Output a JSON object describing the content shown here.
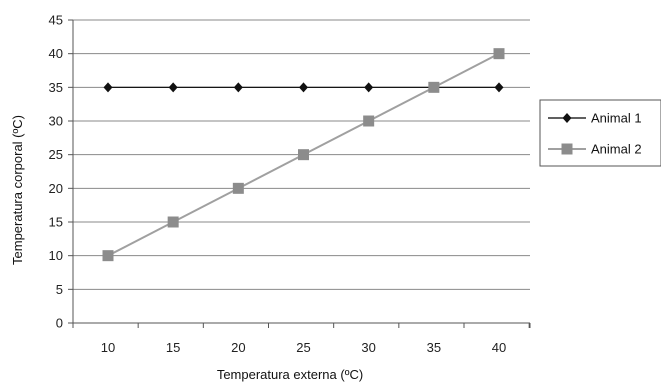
{
  "chart_data": {
    "type": "line",
    "title": "",
    "xlabel": "Temperatura externa (ºC)",
    "ylabel": "Temperatura corporal (ºC)",
    "x": [
      10,
      15,
      20,
      25,
      30,
      35,
      40
    ],
    "x_tick_labels": [
      "10",
      "15",
      "20",
      "25",
      "30",
      "35",
      "40"
    ],
    "ylim": [
      0,
      45
    ],
    "y_ticks": [
      0,
      5,
      10,
      15,
      20,
      25,
      30,
      35,
      40,
      45
    ],
    "y_tick_labels": [
      "0",
      "5",
      "10",
      "15",
      "20",
      "25",
      "30",
      "35",
      "40",
      "45"
    ],
    "grid": true,
    "legend_position": "right",
    "series": [
      {
        "name": "Animal 1",
        "values": [
          35,
          35,
          35,
          35,
          35,
          35,
          35
        ],
        "marker": "diamond",
        "color": "#111111"
      },
      {
        "name": "Animal 2",
        "values": [
          10,
          15,
          20,
          25,
          30,
          35,
          40
        ],
        "marker": "square",
        "color": "#8c8c8c"
      }
    ]
  }
}
